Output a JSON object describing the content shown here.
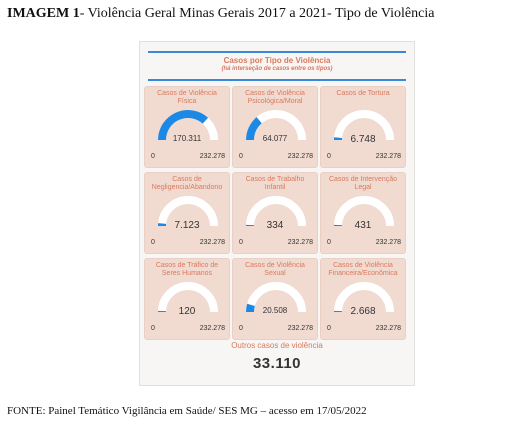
{
  "document": {
    "title_bold": "IMAGEM 1",
    "title_rest": "- Violência Geral Minas Gerais 2017 a 2021- Tipo de Violência",
    "source": "FONTE: Painel Temático Vigilância em Saúde/ SES MG – acesso em 17/05/2022"
  },
  "panel": {
    "title": "Casos por Tipo de Violência",
    "subtitle": "(há interseção de casos entre os tipos)",
    "others_label": "Outros casos de violência",
    "others_value": "33.110"
  },
  "colors": {
    "accent": "#3a88d6",
    "gauge_fill": "#1e88e5",
    "gauge_track": "#ffffff",
    "card_bg": "#f1dbd1",
    "label": "#d9795d"
  },
  "chart_data": {
    "type": "gauge",
    "gauge_min": 0,
    "gauge_max": 232278,
    "min_label": "0",
    "max_label": "232.278",
    "cards": [
      {
        "label": "Casos de Violência Física",
        "value_text": "170.311",
        "value": 170311
      },
      {
        "label": "Casos de Violência Psicológica/Moral",
        "value_text": "64.077",
        "value": 64077
      },
      {
        "label": "Casos de Tortura",
        "value_text": "6.748",
        "value": 6748
      },
      {
        "label": "Casos de Negligencia/Abandono",
        "value_text": "7.123",
        "value": 7123
      },
      {
        "label": "Casos de Trabalho Infantil",
        "value_text": "334",
        "value": 334
      },
      {
        "label": "Casos de Intervenção Legal",
        "value_text": "431",
        "value": 431
      },
      {
        "label": "Casos de Tráfico de Seres Humanos",
        "value_text": "120",
        "value": 120
      },
      {
        "label": "Casos de Violência Sexual",
        "value_text": "20.508",
        "value": 20508
      },
      {
        "label": "Casos de Violência Financeira/Econômica",
        "value_text": "2.668",
        "value": 2668
      }
    ]
  }
}
